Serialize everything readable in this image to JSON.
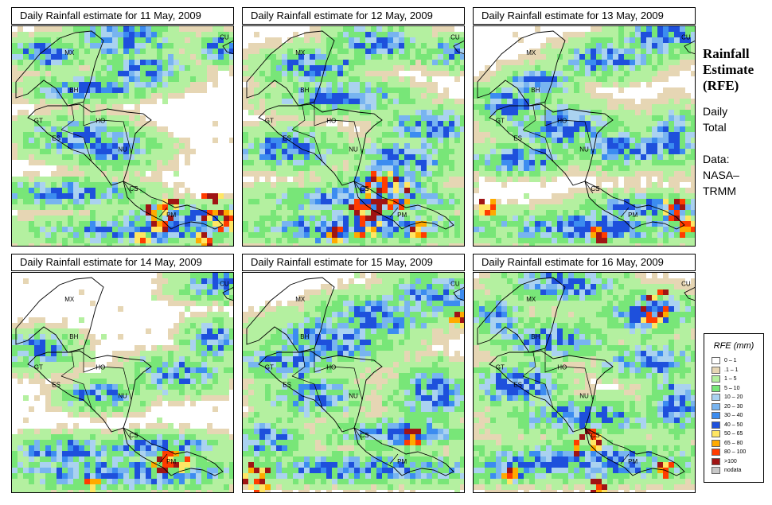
{
  "panels": [
    {
      "title": "Daily Rainfall estimate for  11 May, 2009",
      "blobs": [
        [
          0.55,
          0.92,
          0.55,
          0.08
        ],
        [
          0.8,
          0.88,
          0.45,
          0.07
        ],
        [
          0.7,
          0.84,
          0.18,
          0.07
        ],
        [
          0.88,
          0.86,
          0.5,
          0.07
        ],
        [
          0.3,
          0.5,
          0.3,
          0.1
        ],
        [
          0.45,
          0.55,
          0.25,
          0.1
        ],
        [
          0.35,
          0.28,
          0.3,
          0.07
        ],
        [
          0.6,
          0.2,
          0.25,
          0.09
        ],
        [
          0.15,
          0.12,
          0.2,
          0.08
        ],
        [
          0.5,
          0.05,
          0.25,
          0.12
        ],
        [
          0.95,
          0.1,
          0.15,
          0.08
        ],
        [
          0.25,
          0.75,
          0.4,
          0.07
        ]
      ],
      "hot": [
        [
          0.66,
          0.86,
          2,
          5
        ],
        [
          0.91,
          0.8,
          2,
          5
        ],
        [
          0.93,
          0.86,
          2,
          5
        ],
        [
          0.58,
          0.95,
          1,
          4
        ],
        [
          0.7,
          0.78,
          1,
          4
        ],
        [
          0.85,
          0.95,
          1,
          4
        ]
      ]
    },
    {
      "title": "Daily Rainfall estimate for  12 May, 2009",
      "blobs": [
        [
          0.5,
          0.9,
          0.65,
          0.09
        ],
        [
          0.55,
          0.78,
          0.55,
          0.08
        ],
        [
          0.62,
          0.72,
          0.28,
          0.09
        ],
        [
          0.72,
          0.6,
          0.25,
          0.12
        ],
        [
          0.45,
          0.32,
          0.35,
          0.09
        ],
        [
          0.3,
          0.18,
          0.25,
          0.1
        ],
        [
          0.6,
          0.08,
          0.25,
          0.1
        ],
        [
          0.95,
          0.12,
          0.15,
          0.08
        ],
        [
          0.2,
          0.55,
          0.3,
          0.1
        ],
        [
          0.85,
          0.45,
          0.25,
          0.1
        ]
      ],
      "hot": [
        [
          0.62,
          0.74,
          3,
          7
        ],
        [
          0.68,
          0.76,
          2,
          5
        ],
        [
          0.55,
          0.88,
          2,
          5
        ],
        [
          0.52,
          0.82,
          1,
          4
        ],
        [
          0.78,
          0.92,
          1,
          4
        ],
        [
          0.4,
          0.94,
          1,
          4
        ]
      ]
    },
    {
      "title": "Daily Rainfall estimate for  13 May, 2009",
      "blobs": [
        [
          0.5,
          0.9,
          0.65,
          0.09
        ],
        [
          0.78,
          0.82,
          0.35,
          0.08
        ],
        [
          0.4,
          0.45,
          0.3,
          0.12
        ],
        [
          0.15,
          0.35,
          0.22,
          0.1
        ],
        [
          0.3,
          0.25,
          0.2,
          0.08
        ],
        [
          0.6,
          0.15,
          0.25,
          0.1
        ],
        [
          0.85,
          0.05,
          0.25,
          0.1
        ],
        [
          0.7,
          0.55,
          0.3,
          0.1
        ],
        [
          0.9,
          0.5,
          0.15,
          0.15
        ],
        [
          0.2,
          0.6,
          0.25,
          0.08
        ]
      ],
      "hot": [
        [
          0.92,
          0.84,
          2,
          5
        ],
        [
          0.05,
          0.82,
          1,
          4
        ],
        [
          0.95,
          0.9,
          1,
          4
        ],
        [
          0.55,
          0.93,
          1,
          4
        ]
      ]
    },
    {
      "title": "Daily Rainfall estimate for  14 May, 2009",
      "blobs": [
        [
          0.5,
          0.9,
          0.7,
          0.09
        ],
        [
          0.65,
          0.78,
          0.35,
          0.07
        ],
        [
          0.25,
          0.8,
          0.3,
          0.08
        ],
        [
          0.12,
          0.35,
          0.2,
          0.1
        ],
        [
          0.9,
          0.05,
          0.2,
          0.08
        ],
        [
          0.75,
          0.45,
          0.25,
          0.1
        ],
        [
          0.9,
          0.3,
          0.15,
          0.1
        ],
        [
          0.4,
          0.55,
          0.2,
          0.08
        ]
      ],
      "hot": [
        [
          0.68,
          0.83,
          2,
          5
        ],
        [
          0.75,
          0.85,
          1,
          4
        ],
        [
          0.35,
          0.95,
          1,
          4
        ]
      ]
    },
    {
      "title": "Daily Rainfall estimate for  15 May, 2009",
      "blobs": [
        [
          0.55,
          0.88,
          0.7,
          0.08
        ],
        [
          0.7,
          0.72,
          0.35,
          0.08
        ],
        [
          0.4,
          0.3,
          0.35,
          0.14
        ],
        [
          0.2,
          0.4,
          0.25,
          0.1
        ],
        [
          0.6,
          0.2,
          0.3,
          0.12
        ],
        [
          0.85,
          0.1,
          0.25,
          0.12
        ],
        [
          0.1,
          0.75,
          0.2,
          0.1
        ],
        [
          0.3,
          0.55,
          0.25,
          0.1
        ],
        [
          0.85,
          0.55,
          0.2,
          0.15
        ]
      ],
      "hot": [
        [
          0.75,
          0.74,
          1,
          5
        ],
        [
          0.05,
          0.9,
          2,
          5
        ],
        [
          0.08,
          0.95,
          1,
          4
        ],
        [
          0.95,
          0.2,
          1,
          4
        ]
      ]
    },
    {
      "title": "Daily Rainfall estimate for  16 May, 2009",
      "blobs": [
        [
          0.5,
          0.85,
          0.7,
          0.1
        ],
        [
          0.5,
          0.65,
          0.4,
          0.1
        ],
        [
          0.78,
          0.18,
          0.25,
          0.12
        ],
        [
          0.8,
          0.4,
          0.25,
          0.1
        ],
        [
          0.35,
          0.3,
          0.3,
          0.1
        ],
        [
          0.2,
          0.5,
          0.25,
          0.12
        ],
        [
          0.4,
          0.05,
          0.3,
          0.1
        ],
        [
          0.1,
          0.2,
          0.15,
          0.1
        ],
        [
          0.15,
          0.88,
          0.25,
          0.08
        ],
        [
          0.9,
          0.6,
          0.15,
          0.15
        ]
      ],
      "hot": [
        [
          0.8,
          0.15,
          3,
          6
        ],
        [
          0.52,
          0.76,
          2,
          6
        ],
        [
          0.15,
          0.9,
          1,
          4
        ],
        [
          0.85,
          0.88,
          1,
          4
        ],
        [
          0.55,
          0.95,
          1,
          4
        ]
      ]
    }
  ],
  "country_labels": [
    "MX",
    "CU",
    "BH",
    "GT",
    "HO",
    "ES",
    "NU",
    "CS",
    "PM"
  ],
  "side_panel": {
    "title_lines": [
      "Rainfall",
      "Estimate",
      "(RFE)"
    ],
    "subtitle_lines": [
      "Daily",
      "Total"
    ],
    "data_lines": [
      "Data:",
      "NASA–",
      "TRMM"
    ]
  },
  "legend": {
    "title": "RFE (mm)",
    "items": [
      {
        "label": "0 – 1",
        "color": "#ffffff"
      },
      {
        "label": ".1 – 1",
        "color": "#e6d6b4"
      },
      {
        "label": "1 – 5",
        "color": "#b4f0a0"
      },
      {
        "label": "5 – 10",
        "color": "#78e678"
      },
      {
        "label": "10 – 20",
        "color": "#aad2f0"
      },
      {
        "label": "20 – 30",
        "color": "#78b4f0"
      },
      {
        "label": "30 – 40",
        "color": "#3c8cf0"
      },
      {
        "label": "40 – 50",
        "color": "#1e50dc"
      },
      {
        "label": "50 – 65",
        "color": "#ffe664"
      },
      {
        "label": "65 – 80",
        "color": "#ffaa00"
      },
      {
        "label": "80 – 100",
        "color": "#ff3c00"
      },
      {
        "label": ">100",
        "color": "#a01414"
      },
      {
        "label": "nodata",
        "color": "#c8c8c8"
      }
    ]
  }
}
